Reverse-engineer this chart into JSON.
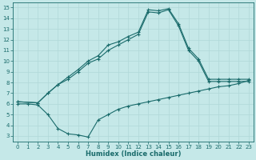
{
  "xlabel": "Humidex (Indice chaleur)",
  "bg_color": "#c5e8e8",
  "line_color": "#1a6b6b",
  "grid_color": "#b0d8d8",
  "xlim": [
    -0.5,
    23.5
  ],
  "ylim": [
    2.5,
    15.5
  ],
  "xticks": [
    0,
    1,
    2,
    3,
    4,
    5,
    6,
    7,
    8,
    9,
    10,
    11,
    12,
    13,
    14,
    15,
    16,
    17,
    18,
    19,
    20,
    21,
    22,
    23
  ],
  "yticks": [
    3,
    4,
    5,
    6,
    7,
    8,
    9,
    10,
    11,
    12,
    13,
    14,
    15
  ],
  "line1_x": [
    0,
    1,
    2,
    3,
    4,
    5,
    6,
    7,
    8,
    9,
    10,
    11,
    12,
    13,
    14,
    15,
    16,
    17,
    18,
    19,
    20,
    21,
    22,
    23
  ],
  "line1_y": [
    6.0,
    6.0,
    5.9,
    5.0,
    3.7,
    3.2,
    3.1,
    2.9,
    4.5,
    5.0,
    5.5,
    5.8,
    6.0,
    6.2,
    6.4,
    6.6,
    6.8,
    7.0,
    7.2,
    7.4,
    7.6,
    7.7,
    7.9,
    8.2
  ],
  "line2_x": [
    0,
    2,
    3,
    4,
    5,
    6,
    7,
    8,
    9,
    10,
    11,
    12,
    13,
    14,
    15,
    16,
    17,
    18,
    19,
    20,
    21,
    22,
    23
  ],
  "line2_y": [
    6.2,
    6.1,
    7.0,
    7.8,
    8.5,
    9.2,
    10.0,
    10.5,
    11.5,
    11.8,
    12.3,
    12.7,
    14.8,
    14.7,
    14.9,
    13.5,
    11.2,
    10.2,
    8.3,
    8.3,
    8.3,
    8.3,
    8.3
  ],
  "line3_x": [
    0,
    2,
    3,
    4,
    5,
    6,
    7,
    8,
    9,
    10,
    11,
    12,
    13,
    14,
    15,
    16,
    17,
    18,
    19,
    20,
    21,
    22,
    23
  ],
  "line3_y": [
    6.2,
    6.1,
    7.0,
    7.8,
    8.3,
    9.0,
    9.8,
    10.2,
    11.0,
    11.5,
    12.0,
    12.5,
    14.6,
    14.5,
    14.8,
    13.3,
    11.0,
    10.0,
    8.1,
    8.1,
    8.1,
    8.1,
    8.1
  ]
}
